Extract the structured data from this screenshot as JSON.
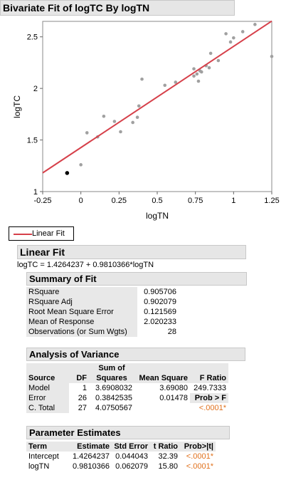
{
  "title": "Bivariate Fit of logTC By logTN",
  "chart_data": {
    "type": "scatter",
    "xlabel": "logTN",
    "ylabel": "logTC",
    "xlim": [
      -0.25,
      1.25
    ],
    "ylim": [
      1,
      2.65
    ],
    "x_ticks": [
      "-0.25",
      "0",
      "0.25",
      "0.5",
      "0.75",
      "1",
      "1.25"
    ],
    "y_ticks": [
      "1",
      "1.5",
      "2",
      "2.5"
    ],
    "x_tick_values": [
      -0.25,
      0,
      0.25,
      0.5,
      0.75,
      1,
      1.25
    ],
    "y_tick_values": [
      1,
      1.5,
      2,
      2.5
    ],
    "points": [
      [
        0.0,
        1.26
      ],
      [
        0.04,
        1.57
      ],
      [
        0.11,
        1.53
      ],
      [
        0.15,
        1.73
      ],
      [
        0.22,
        1.68
      ],
      [
        0.26,
        1.58
      ],
      [
        0.34,
        1.67
      ],
      [
        0.37,
        1.72
      ],
      [
        0.38,
        1.83
      ],
      [
        0.4,
        2.09
      ],
      [
        0.55,
        2.03
      ],
      [
        0.62,
        2.06
      ],
      [
        0.74,
        2.12
      ],
      [
        0.74,
        2.19
      ],
      [
        0.76,
        2.14
      ],
      [
        0.77,
        2.07
      ],
      [
        0.78,
        2.17
      ],
      [
        0.79,
        2.16
      ],
      [
        0.82,
        2.22
      ],
      [
        0.84,
        2.2
      ],
      [
        0.85,
        2.34
      ],
      [
        0.9,
        2.27
      ],
      [
        0.95,
        2.53
      ],
      [
        0.98,
        2.45
      ],
      [
        1.0,
        2.49
      ],
      [
        1.06,
        2.55
      ],
      [
        1.14,
        2.62
      ],
      [
        1.25,
        2.31
      ]
    ],
    "highlighted_point": [
      -0.09,
      1.18
    ],
    "fit": {
      "intercept": 1.4264237,
      "slope": 0.9810366
    },
    "colors": {
      "fit_line": "#d6404a",
      "point": "#a0a0a0",
      "highlight": "#000000"
    }
  },
  "legend": {
    "label": "Linear Fit"
  },
  "linear_fit": {
    "title": "Linear Fit",
    "equation": "logTC = 1.4264237 + 0.9810366*logTN"
  },
  "summary_of_fit": {
    "title": "Summary of Fit",
    "rows": [
      {
        "label": "RSquare",
        "value": "0.905706"
      },
      {
        "label": "RSquare Adj",
        "value": "0.902079"
      },
      {
        "label": "Root Mean Square Error",
        "value": "0.121569"
      },
      {
        "label": "Mean of Response",
        "value": "2.020233"
      },
      {
        "label": "Observations (or Sum Wgts)",
        "value": "28"
      }
    ]
  },
  "anova": {
    "title": "Analysis of Variance",
    "header_top": "Sum of",
    "headers": [
      "Source",
      "DF",
      "Squares",
      "Mean Square",
      "F Ratio"
    ],
    "rows": [
      {
        "source": "Model",
        "df": "1",
        "ss": "3.6908032",
        "ms": "3.69080",
        "f": "249.7333"
      },
      {
        "source": "Error",
        "df": "26",
        "ss": "0.3842535",
        "ms": "0.01478",
        "f": "Prob > F"
      },
      {
        "source": "C. Total",
        "df": "27",
        "ss": "4.0750567",
        "ms": "",
        "f": "<.0001*"
      }
    ]
  },
  "parameter_estimates": {
    "title": "Parameter Estimates",
    "headers": [
      "Term",
      "Estimate",
      "Std Error",
      "t Ratio",
      "Prob>|t|"
    ],
    "rows": [
      {
        "term": "Intercept",
        "estimate": "1.4264237",
        "se": "0.044043",
        "t": "32.39",
        "p": "<.0001*"
      },
      {
        "term": "logTN",
        "estimate": "0.9810366",
        "se": "0.062079",
        "t": "15.80",
        "p": "<.0001*"
      }
    ]
  }
}
